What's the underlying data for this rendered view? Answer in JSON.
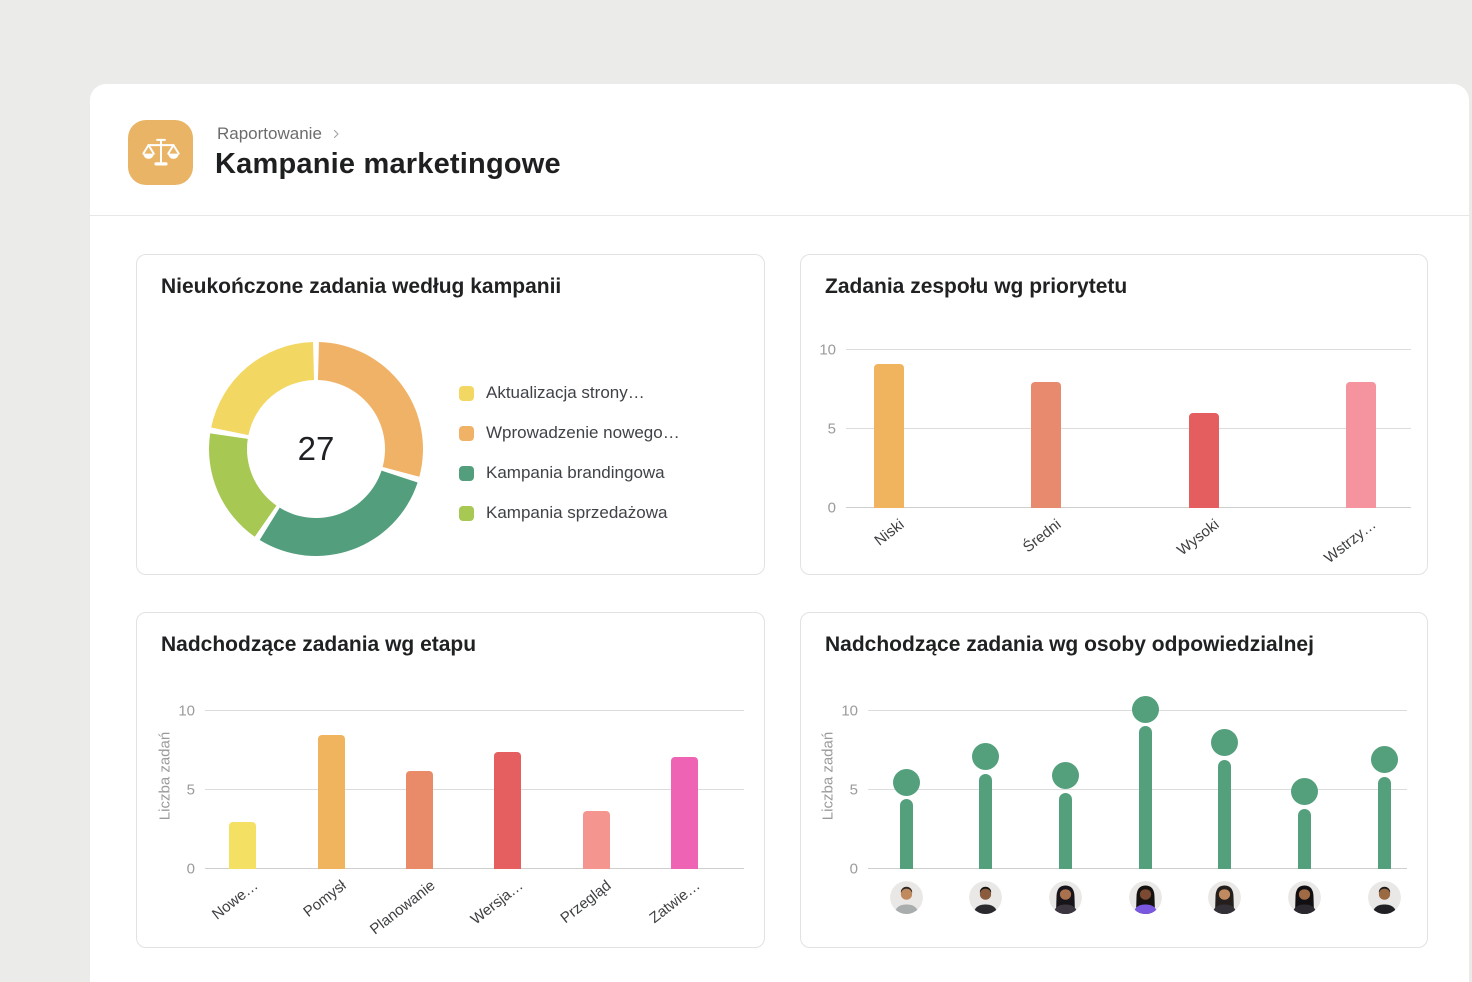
{
  "page": {
    "background": "#ebebe9",
    "panel_background": "#ffffff"
  },
  "header": {
    "breadcrumb": "Raportowanie",
    "title": "Kampanie marketingowe",
    "icon": "balance-scale-icon",
    "icon_bg": "#e9b465"
  },
  "chart_data": [
    {
      "id": "by_campaign",
      "type": "pie",
      "donut": true,
      "title": "Nieukończone zadania według kampanii",
      "center_label": "27",
      "total": 27,
      "segments": [
        {
          "label": "Wprowadzenie nowego…",
          "value": 8,
          "color": "#f0b266"
        },
        {
          "label": "Kampania brandingowa",
          "value": 8,
          "color": "#529e7d"
        },
        {
          "label": "Kampania sprzedażowa",
          "value": 5,
          "color": "#a7c853"
        },
        {
          "label": "Aktualizacja strony…",
          "value": 6,
          "color": "#f3d763"
        }
      ],
      "legend": [
        {
          "label": "Aktualizacja strony…",
          "color": "#f3d763"
        },
        {
          "label": "Wprowadzenie nowego…",
          "color": "#f0b266"
        },
        {
          "label": "Kampania brandingowa",
          "color": "#529e7d"
        },
        {
          "label": "Kampania sprzedażowa",
          "color": "#a7c853"
        }
      ],
      "legend_position": "right"
    },
    {
      "id": "by_priority",
      "type": "bar",
      "title": "Zadania zespołu wg priorytetu",
      "categories": [
        "Niski",
        "Średni",
        "Wysoki",
        "Wstrzy…"
      ],
      "values": [
        9.1,
        8,
        6,
        8
      ],
      "colors": [
        "#f0b45f",
        "#e88a6d",
        "#e55e5f",
        "#f5939e"
      ],
      "ylabel": "",
      "yticks": [
        0,
        5,
        10
      ],
      "ylim": [
        0,
        11
      ],
      "grid": true
    },
    {
      "id": "by_stage",
      "type": "bar",
      "title": "Nadchodzące zadania wg etapu",
      "categories": [
        "Nowe…",
        "Pomysł",
        "Planowanie",
        "Wersja…",
        "Przegląd",
        "Zatwie…"
      ],
      "values": [
        3,
        8.5,
        6.2,
        7.4,
        3.7,
        7.1
      ],
      "colors": [
        "#f4e163",
        "#f0b45f",
        "#e98b69",
        "#e55f60",
        "#f4968f",
        "#ee63b3"
      ],
      "ylabel": "Liczba zadań",
      "yticks": [
        0,
        5,
        10
      ],
      "ylim": [
        0,
        11
      ],
      "grid": true
    },
    {
      "id": "by_assignee",
      "type": "lollipop",
      "title": "Nadchodzące zadania wg osoby odpowiedzialnej",
      "categories": [
        "avatar-1",
        "avatar-2",
        "avatar-3",
        "avatar-4",
        "avatar-5",
        "avatar-6",
        "avatar-7"
      ],
      "values": [
        5.5,
        7.1,
        5.9,
        10.1,
        8,
        4.9,
        6.9
      ],
      "color": "#54a07c",
      "ylabel": "Liczba zadań",
      "yticks": [
        0,
        5,
        10
      ],
      "ylim": [
        0,
        11
      ],
      "grid": true,
      "avatars": [
        {
          "style": "short",
          "skin": "#c08a5e",
          "hair": "#35291f",
          "shirt": "#a9adae"
        },
        {
          "style": "short",
          "skin": "#8a5b3c",
          "hair": "#16130f",
          "shirt": "#2a2a2e"
        },
        {
          "style": "long",
          "skin": "#a9714d",
          "hair": "#17141a",
          "shirt": "#3c3640"
        },
        {
          "style": "long",
          "skin": "#7a4a32",
          "hair": "#15120f",
          "shirt": "#7b58e0"
        },
        {
          "style": "long",
          "skin": "#c08a60",
          "hair": "#241e1c",
          "shirt": "#343038"
        },
        {
          "style": "long",
          "skin": "#a06a44",
          "hair": "#120f12",
          "shirt": "#2c2830"
        },
        {
          "style": "short",
          "skin": "#9a6a42",
          "hair": "#201a16",
          "shirt": "#212125"
        }
      ]
    }
  ]
}
